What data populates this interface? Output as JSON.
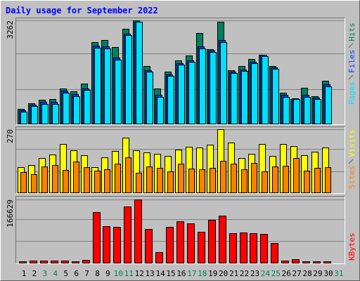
{
  "chart_data": [
    {
      "type": "bar",
      "title": "Daily usage for September 2022",
      "ylim": [
        0,
        3330
      ],
      "yticks": [
        3262
      ],
      "series": [
        {
          "name": "Hits",
          "color": "#00805c",
          "values": [
            490,
            670,
            780,
            800,
            1120,
            1030,
            1270,
            2570,
            2650,
            2430,
            2990,
            3262,
            1830,
            1120,
            1650,
            2010,
            2170,
            2860,
            2370,
            3230,
            1700,
            1830,
            2050,
            2190,
            1830,
            1000,
            800,
            1140,
            890,
            1360,
            null
          ]
        },
        {
          "name": "Files",
          "color": "#0040ff",
          "values": [
            440,
            620,
            700,
            700,
            1050,
            940,
            1120,
            2470,
            2450,
            2090,
            2850,
            3230,
            1700,
            920,
            1570,
            1920,
            2010,
            2450,
            2320,
            2650,
            1660,
            1720,
            1970,
            2190,
            1790,
            920,
            820,
            920,
            840,
            1250,
            null
          ]
        },
        {
          "name": "Pages",
          "color": "#00e0ff",
          "values": [
            400,
            580,
            650,
            650,
            1000,
            890,
            1070,
            2410,
            2390,
            2030,
            2790,
            3210,
            1650,
            870,
            1520,
            1870,
            1960,
            2390,
            2270,
            2590,
            1610,
            1670,
            1920,
            2140,
            1740,
            870,
            800,
            870,
            800,
            1200,
            null
          ]
        }
      ]
    },
    {
      "type": "bar",
      "ylim": [
        0,
        279
      ],
      "yticks": [
        270
      ],
      "series": [
        {
          "name": "Visits",
          "color": "#ffff00",
          "values": [
            111,
            120,
            147,
            162,
            207,
            180,
            159,
            111,
            150,
            177,
            234,
            180,
            171,
            165,
            156,
            183,
            195,
            192,
            204,
            270,
            213,
            147,
            165,
            207,
            156,
            207,
            198,
            159,
            174,
            192,
            null
          ]
        },
        {
          "name": "Sites",
          "color": "#ff8000",
          "values": [
            90,
            81,
            114,
            120,
            99,
            135,
            111,
            96,
            102,
            126,
            150,
            87,
            114,
            108,
            93,
            126,
            105,
            102,
            108,
            138,
            126,
            102,
            129,
            93,
            114,
            117,
            147,
            96,
            108,
            111,
            null
          ]
        }
      ]
    },
    {
      "type": "bar",
      "ylim": [
        0,
        174000
      ],
      "yticks": [
        166629
      ],
      "series": [
        {
          "name": "KBytes",
          "color": "#ff0000",
          "values": [
            5500,
            7400,
            7400,
            7400,
            7400,
            5500,
            9300,
            133300,
            96300,
            94400,
            148100,
            166629,
            88900,
            29600,
            94400,
            109200,
            103700,
            83300,
            112900,
            124000,
            79600,
            81500,
            79600,
            77800,
            53700,
            7400,
            11100,
            5500,
            5500,
            5500,
            null
          ]
        }
      ],
      "categories": [
        "1",
        "2",
        "3",
        "4",
        "5",
        "6",
        "7",
        "8",
        "9",
        "10",
        "11",
        "12",
        "13",
        "14",
        "15",
        "16",
        "17",
        "18",
        "19",
        "20",
        "21",
        "22",
        "23",
        "24",
        "25",
        "26",
        "27",
        "28",
        "29",
        "30",
        "31"
      ],
      "category_label_colors": [
        "#000000",
        "#000000",
        "#00805c",
        "#00805c",
        "#000000",
        "#000000",
        "#000000",
        "#000000",
        "#000000",
        "#00805c",
        "#00805c",
        "#000000",
        "#000000",
        "#000000",
        "#000000",
        "#000000",
        "#00805c",
        "#00805c",
        "#000000",
        "#000000",
        "#000000",
        "#000000",
        "#000000",
        "#00805c",
        "#00805c",
        "#000000",
        "#000000",
        "#000000",
        "#000000",
        "#000000",
        "#00805c"
      ]
    }
  ]
}
